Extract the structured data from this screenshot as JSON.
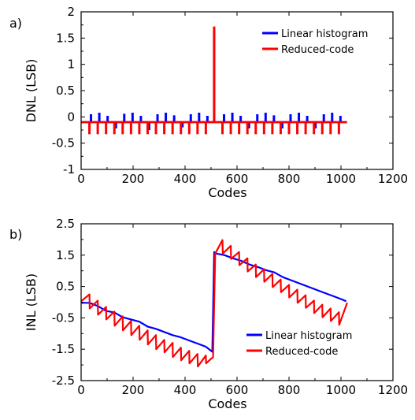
{
  "chart_data": [
    {
      "panel_label": "a)",
      "type": "line",
      "title": "",
      "xlabel": "Codes",
      "ylabel": "DNL (LSB)",
      "xlim": [
        0,
        1200
      ],
      "ylim": [
        -1,
        2
      ],
      "xticks": [
        "0",
        "200",
        "400",
        "600",
        "800",
        "1000",
        "1200"
      ],
      "yticks": [
        "-1",
        "-0.5",
        "0",
        "0.5",
        "1",
        "1.5",
        "2"
      ],
      "legend_position": "top-right",
      "series": [
        {
          "name": "Linear histogram",
          "color": "#0000ff",
          "baseline": -0.1,
          "spikes": [
            {
              "x": 38,
              "y": 0.05
            },
            {
              "x": 70,
              "y": 0.08
            },
            {
              "x": 102,
              "y": 0.02
            },
            {
              "x": 134,
              "y": -0.22
            },
            {
              "x": 166,
              "y": 0.06
            },
            {
              "x": 198,
              "y": 0.08
            },
            {
              "x": 230,
              "y": 0.02
            },
            {
              "x": 262,
              "y": -0.25
            },
            {
              "x": 294,
              "y": 0.05
            },
            {
              "x": 326,
              "y": 0.08
            },
            {
              "x": 358,
              "y": 0.03
            },
            {
              "x": 390,
              "y": -0.2
            },
            {
              "x": 422,
              "y": 0.05
            },
            {
              "x": 454,
              "y": 0.08
            },
            {
              "x": 486,
              "y": 0.02
            },
            {
              "x": 512,
              "y": 1.65
            },
            {
              "x": 550,
              "y": 0.05
            },
            {
              "x": 582,
              "y": 0.08
            },
            {
              "x": 614,
              "y": 0.02
            },
            {
              "x": 646,
              "y": -0.22
            },
            {
              "x": 678,
              "y": 0.05
            },
            {
              "x": 710,
              "y": 0.08
            },
            {
              "x": 742,
              "y": 0.03
            },
            {
              "x": 774,
              "y": -0.22
            },
            {
              "x": 806,
              "y": 0.05
            },
            {
              "x": 838,
              "y": 0.08
            },
            {
              "x": 870,
              "y": 0.02
            },
            {
              "x": 902,
              "y": -0.22
            },
            {
              "x": 934,
              "y": 0.05
            },
            {
              "x": 966,
              "y": 0.08
            },
            {
              "x": 998,
              "y": 0.02
            }
          ]
        },
        {
          "name": "Reduced-code",
          "color": "#ff0000",
          "baseline": -0.1,
          "spikes": [
            {
              "x": 32,
              "y": -0.33
            },
            {
              "x": 64,
              "y": -0.33
            },
            {
              "x": 96,
              "y": -0.33
            },
            {
              "x": 128,
              "y": -0.33
            },
            {
              "x": 160,
              "y": -0.33
            },
            {
              "x": 192,
              "y": -0.33
            },
            {
              "x": 224,
              "y": -0.33
            },
            {
              "x": 256,
              "y": -0.33
            },
            {
              "x": 288,
              "y": -0.33
            },
            {
              "x": 320,
              "y": -0.33
            },
            {
              "x": 352,
              "y": -0.33
            },
            {
              "x": 384,
              "y": -0.33
            },
            {
              "x": 416,
              "y": -0.33
            },
            {
              "x": 448,
              "y": -0.33
            },
            {
              "x": 480,
              "y": -0.33
            },
            {
              "x": 512,
              "y": 1.72
            },
            {
              "x": 544,
              "y": -0.33
            },
            {
              "x": 576,
              "y": -0.33
            },
            {
              "x": 608,
              "y": -0.33
            },
            {
              "x": 640,
              "y": -0.33
            },
            {
              "x": 672,
              "y": -0.33
            },
            {
              "x": 704,
              "y": -0.33
            },
            {
              "x": 736,
              "y": -0.33
            },
            {
              "x": 768,
              "y": -0.33
            },
            {
              "x": 800,
              "y": -0.33
            },
            {
              "x": 832,
              "y": -0.33
            },
            {
              "x": 864,
              "y": -0.33
            },
            {
              "x": 896,
              "y": -0.33
            },
            {
              "x": 928,
              "y": -0.33
            },
            {
              "x": 960,
              "y": -0.33
            },
            {
              "x": 992,
              "y": -0.33
            }
          ]
        }
      ]
    },
    {
      "panel_label": "b)",
      "type": "line",
      "title": "",
      "xlabel": "Codes",
      "ylabel": "INL (LSB)",
      "xlim": [
        0,
        1200
      ],
      "ylim": [
        -2.5,
        2.5
      ],
      "xticks": [
        "0",
        "200",
        "400",
        "600",
        "800",
        "1000",
        "1200"
      ],
      "yticks": [
        "-2.5",
        "-1.5",
        "-0.5",
        "0.5",
        "1.5",
        "2.5"
      ],
      "legend_position": "bottom-right",
      "series": [
        {
          "name": "Linear histogram",
          "color": "#0000ff",
          "x": [
            0,
            32,
            64,
            96,
            128,
            160,
            192,
            224,
            256,
            288,
            320,
            352,
            384,
            416,
            448,
            480,
            505,
            512,
            520,
            552,
            584,
            616,
            648,
            680,
            712,
            744,
            776,
            808,
            840,
            872,
            904,
            936,
            968,
            1000,
            1020
          ],
          "y": [
            -0.02,
            -0.02,
            -0.12,
            -0.28,
            -0.33,
            -0.48,
            -0.55,
            -0.62,
            -0.78,
            -0.85,
            -0.95,
            -1.05,
            -1.12,
            -1.22,
            -1.32,
            -1.42,
            -1.58,
            1.6,
            1.55,
            1.5,
            1.4,
            1.32,
            1.2,
            1.12,
            1.02,
            0.95,
            0.8,
            0.7,
            0.6,
            0.5,
            0.4,
            0.3,
            0.2,
            0.1,
            0.03
          ]
        },
        {
          "name": "Reduced-code",
          "color": "#ff0000",
          "x": [
            0,
            32,
            33,
            64,
            65,
            96,
            97,
            128,
            129,
            160,
            161,
            192,
            193,
            224,
            225,
            256,
            257,
            288,
            289,
            320,
            321,
            352,
            353,
            384,
            385,
            416,
            417,
            448,
            449,
            480,
            481,
            508,
            512,
            516,
            544,
            545,
            576,
            577,
            608,
            609,
            640,
            641,
            672,
            673,
            704,
            705,
            736,
            737,
            768,
            769,
            800,
            801,
            832,
            833,
            864,
            865,
            896,
            897,
            928,
            929,
            960,
            961,
            992,
            993,
            1024
          ],
          "y": [
            0.03,
            0.25,
            -0.2,
            0.05,
            -0.4,
            -0.15,
            -0.55,
            -0.3,
            -0.75,
            -0.45,
            -0.9,
            -0.6,
            -1.05,
            -0.75,
            -1.2,
            -0.9,
            -1.35,
            -1.05,
            -1.5,
            -1.2,
            -1.6,
            -1.3,
            -1.75,
            -1.45,
            -1.85,
            -1.55,
            -1.95,
            -1.65,
            -2.05,
            -1.7,
            -1.95,
            -1.75,
            0.0,
            1.55,
            1.98,
            1.55,
            1.8,
            1.38,
            1.6,
            1.18,
            1.4,
            0.98,
            1.2,
            0.8,
            1.05,
            0.65,
            0.9,
            0.48,
            0.72,
            0.32,
            0.55,
            0.15,
            0.4,
            -0.02,
            0.22,
            -0.18,
            0.05,
            -0.35,
            -0.08,
            -0.48,
            -0.2,
            -0.6,
            -0.32,
            -0.72,
            -0.02
          ]
        }
      ]
    }
  ]
}
